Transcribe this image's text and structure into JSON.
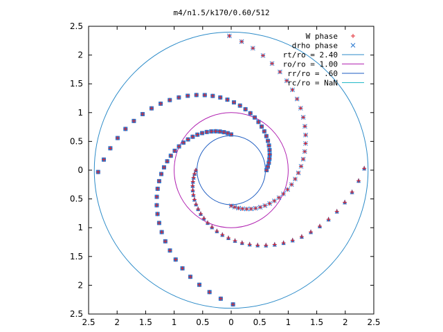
{
  "chart_data": {
    "type": "scatter",
    "title": "m4/n1.5/k170/0.60/512",
    "xlabel": "",
    "ylabel": "",
    "xlim": [
      -2.5,
      2.5
    ],
    "ylim": [
      -2.5,
      2.5
    ],
    "x_tick_labels": [
      "2.5",
      "2",
      "1.5",
      "1",
      "0.5",
      "0",
      "0.5",
      "1",
      "1.5",
      "2",
      "2.5"
    ],
    "y_tick_labels": [
      "2.5",
      "2",
      "1.5",
      "1",
      "0.5",
      "0",
      "0.5",
      "1",
      "1.5",
      "2",
      "2.5"
    ],
    "grid": false,
    "legend_position": "top-right",
    "colors": {
      "w_phase": "#e0202a",
      "drho_phase": "#2a78d0",
      "rt": "#2a8ac8",
      "ro": "#b020b0",
      "rr": "#1a5ac0",
      "rc": "#20b8c8"
    },
    "legend": [
      {
        "label": "W phase",
        "marker": "+"
      },
      {
        "label": "drho phase",
        "marker": "x"
      },
      {
        "label": "rt/ro = 2.40",
        "marker": "line"
      },
      {
        "label": "ro/ro = 1.00",
        "marker": "line"
      },
      {
        "label": "rr/ro = .60",
        "marker": "line"
      },
      {
        "label": "rc/ro = NaN",
        "marker": "line"
      }
    ],
    "circles": [
      {
        "name": "rt/ro = 2.40",
        "radius": 2.4
      },
      {
        "name": "ro/ro = 1.00",
        "radius": 1.0
      },
      {
        "name": "rr/ro = .60",
        "radius": 0.6
      }
    ],
    "spiral_arms": [
      {
        "r0": 0.62,
        "theta0": 0,
        "k": 0.42,
        "turns": 1.05,
        "marker": "square"
      },
      {
        "r0": 0.62,
        "theta0": 90,
        "k": 0.42,
        "turns": 1.05,
        "marker": "square"
      },
      {
        "r0": 0.62,
        "theta0": 180,
        "k": 0.42,
        "turns": 1.05,
        "marker": "triangle"
      },
      {
        "r0": 0.62,
        "theta0": 270,
        "k": 0.42,
        "turns": 1.05,
        "marker": "star"
      }
    ]
  }
}
